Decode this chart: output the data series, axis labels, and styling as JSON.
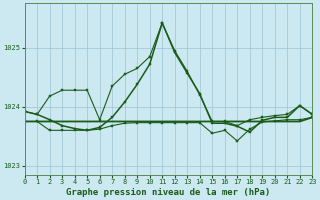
{
  "title": "Graphe pression niveau de la mer (hPa)",
  "bg_color": "#cce8f0",
  "grid_color": "#9cc4d4",
  "line_color": "#1a5c1a",
  "xlim": [
    0,
    23
  ],
  "ylim": [
    1022.85,
    1025.75
  ],
  "yticks": [
    1023,
    1024,
    1025
  ],
  "xticks": [
    0,
    1,
    2,
    3,
    4,
    5,
    6,
    7,
    8,
    9,
    10,
    11,
    12,
    13,
    14,
    15,
    16,
    17,
    18,
    19,
    20,
    21,
    22,
    23
  ],
  "hours": [
    0,
    1,
    2,
    3,
    4,
    5,
    6,
    7,
    8,
    9,
    10,
    11,
    12,
    13,
    14,
    15,
    16,
    17,
    18,
    19,
    20,
    21,
    22,
    23
  ],
  "line1": [
    1023.92,
    1023.87,
    1024.18,
    1024.28,
    1024.28,
    1024.28,
    1023.78,
    1024.35,
    1024.55,
    1024.65,
    1024.85,
    1025.42,
    1024.95,
    1024.6,
    1024.2,
    1023.75,
    1023.75,
    1023.68,
    1023.78,
    1023.82,
    1023.85,
    1023.87,
    1024.02,
    1023.87
  ],
  "line2": [
    1023.92,
    1023.87,
    1023.78,
    1023.68,
    1023.63,
    1023.6,
    1023.65,
    1023.82,
    1024.08,
    1024.38,
    1024.72,
    1025.42,
    1024.92,
    1024.57,
    1024.22,
    1023.72,
    1023.72,
    1023.67,
    1023.57,
    1023.77,
    1023.82,
    1023.82,
    1024.02,
    1023.87
  ],
  "line3": [
    1023.75,
    1023.75,
    1023.6,
    1023.6,
    1023.6,
    1023.6,
    1023.62,
    1023.68,
    1023.72,
    1023.73,
    1023.73,
    1023.73,
    1023.73,
    1023.73,
    1023.73,
    1023.55,
    1023.6,
    1023.42,
    1023.62,
    1023.74,
    1023.76,
    1023.78,
    1023.78,
    1023.82
  ],
  "line4": [
    1023.75,
    1023.75,
    1023.75,
    1023.75,
    1023.75,
    1023.75,
    1023.75,
    1023.75,
    1023.75,
    1023.75,
    1023.75,
    1023.75,
    1023.75,
    1023.75,
    1023.75,
    1023.75,
    1023.75,
    1023.75,
    1023.75,
    1023.75,
    1023.75,
    1023.75,
    1023.75,
    1023.82
  ],
  "marker_size": 2.0,
  "line_width": 0.8,
  "title_fontsize": 6.5,
  "tick_fontsize": 5.0
}
